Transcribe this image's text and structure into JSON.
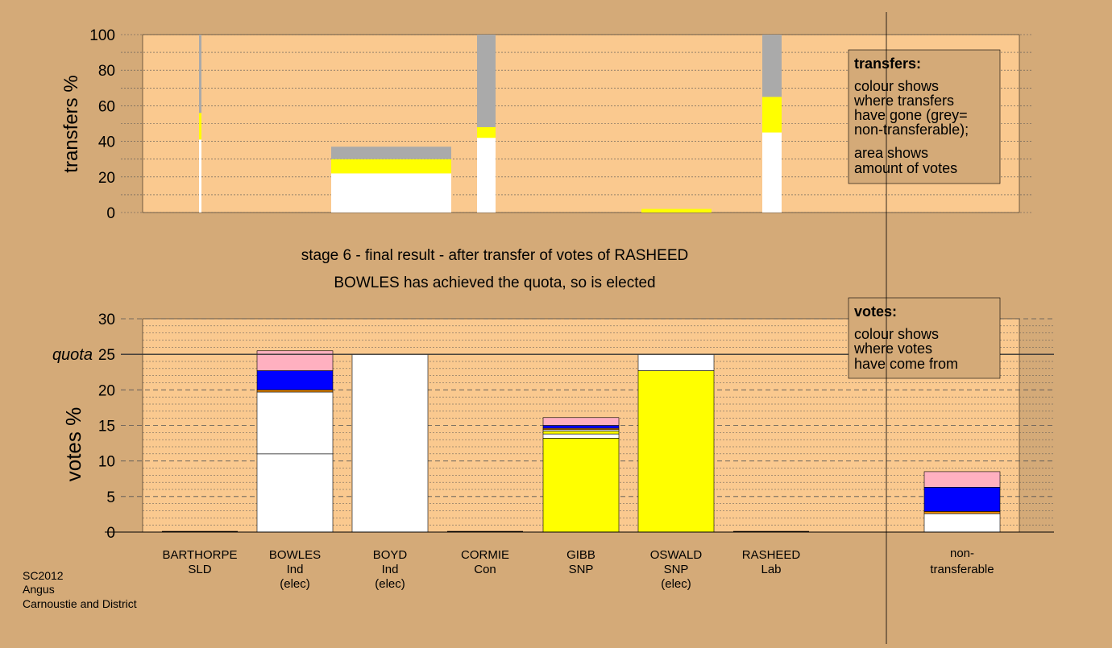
{
  "colors": {
    "background": "#d4aa78",
    "plot_area": "#fac98f",
    "grey": "#aaaaaa",
    "white": "#ffffff",
    "yellow": "#ffff00",
    "blue": "#0000ff",
    "pink": "#ffb0c0",
    "orange": "#f08c00"
  },
  "headings": {
    "line1": "stage 6 - final result - after transfer of votes of RASHEED",
    "line2": "BOWLES has achieved the quota, so is elected"
  },
  "footer": {
    "line1": "SC2012",
    "line2": "Angus",
    "line3": "Carnoustie and District"
  },
  "legend_transfers": {
    "title": "transfers:",
    "lines": [
      "colour shows",
      "where transfers",
      "have gone (grey=",
      "non-transferable);",
      "area shows",
      "amount of votes"
    ]
  },
  "legend_votes": {
    "title": "votes:",
    "lines": [
      "colour shows",
      "where votes",
      "have come from"
    ]
  },
  "quota_label": "quota",
  "candidates": [
    {
      "name": "BARTHORPE",
      "party": "SLD",
      "status": ""
    },
    {
      "name": "BOWLES",
      "party": "Ind",
      "status": "(elec)"
    },
    {
      "name": "BOYD",
      "party": "Ind",
      "status": "(elec)"
    },
    {
      "name": "CORMIE",
      "party": "Con",
      "status": ""
    },
    {
      "name": "GIBB",
      "party": "SNP",
      "status": ""
    },
    {
      "name": "OSWALD",
      "party": "SNP",
      "status": "(elec)"
    },
    {
      "name": "RASHEED",
      "party": "Lab",
      "status": ""
    },
    {
      "name": "non-",
      "party": "transferable",
      "status": ""
    }
  ],
  "chart_data": [
    {
      "type": "bar",
      "ylabel": "transfers %",
      "ylim": [
        0,
        100
      ],
      "yticks": [
        0,
        20,
        40,
        60,
        80,
        100
      ],
      "grid": true,
      "bars": [
        {
          "segments": [
            {
              "color": "white",
              "value": 41
            },
            {
              "color": "yellow",
              "value": 15
            },
            {
              "color": "grey",
              "value": 44
            }
          ]
        },
        {
          "segments": [
            {
              "color": "white",
              "value": 22
            },
            {
              "color": "yellow",
              "value": 8
            },
            {
              "color": "grey",
              "value": 7
            }
          ]
        },
        {
          "segments": [
            {
              "color": "white",
              "value": 42
            },
            {
              "color": "yellow",
              "value": 6
            },
            {
              "color": "grey",
              "value": 52
            }
          ]
        },
        {
          "segments": [
            {
              "color": "yellow",
              "value": 2
            }
          ]
        },
        {
          "segments": [
            {
              "color": "white",
              "value": 45
            },
            {
              "color": "yellow",
              "value": 20
            },
            {
              "color": "grey",
              "value": 35
            }
          ]
        }
      ]
    },
    {
      "type": "bar",
      "ylabel": "votes %",
      "ylim": [
        0,
        30
      ],
      "yticks": [
        0,
        5,
        10,
        15,
        20,
        25,
        30
      ],
      "quota": 25,
      "grid": true,
      "bars": [
        {
          "candidate": "BARTHORPE",
          "segments": []
        },
        {
          "candidate": "BOWLES",
          "segments": [
            {
              "color": "white",
              "value": 11
            },
            {
              "color": "white",
              "value": 8.7
            },
            {
              "color": "orange",
              "value": 0.3
            },
            {
              "color": "blue",
              "value": 2.7
            },
            {
              "color": "pink",
              "value": 2.8
            }
          ]
        },
        {
          "candidate": "BOYD",
          "segments": [
            {
              "color": "white",
              "value": 25
            }
          ]
        },
        {
          "candidate": "CORMIE",
          "segments": []
        },
        {
          "candidate": "GIBB",
          "segments": [
            {
              "color": "yellow",
              "value": 13.2
            },
            {
              "color": "white",
              "value": 0.6
            },
            {
              "color": "yellow",
              "value": 0.4
            },
            {
              "color": "white",
              "value": 0.2
            },
            {
              "color": "orange",
              "value": 0.2
            },
            {
              "color": "blue",
              "value": 0.4
            },
            {
              "color": "pink",
              "value": 1.1
            }
          ]
        },
        {
          "candidate": "OSWALD",
          "segments": [
            {
              "color": "yellow",
              "value": 22.7
            },
            {
              "color": "white",
              "value": 2.3
            }
          ]
        },
        {
          "candidate": "RASHEED",
          "segments": []
        },
        {
          "candidate": "non-transferable",
          "segments": [
            {
              "color": "white",
              "value": 2.6
            },
            {
              "color": "orange",
              "value": 0.3
            },
            {
              "color": "blue",
              "value": 3.4
            },
            {
              "color": "pink",
              "value": 2.2
            }
          ]
        }
      ]
    }
  ]
}
